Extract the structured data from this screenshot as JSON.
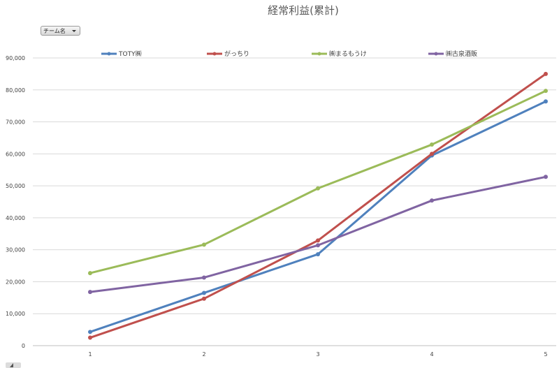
{
  "chart_data": {
    "type": "line",
    "title": "経常利益(累計)",
    "categories": [
      "1",
      "2",
      "3",
      "4",
      "5"
    ],
    "ylim": [
      0,
      90000
    ],
    "ytick_labels": [
      "0",
      "10,000",
      "20,000",
      "30,000",
      "40,000",
      "50,000",
      "60,000",
      "70,000",
      "80,000",
      "90,000"
    ],
    "yticks": [
      0,
      10000,
      20000,
      30000,
      40000,
      50000,
      60000,
      70000,
      80000,
      90000
    ],
    "grid": true,
    "legend_position": "top",
    "series": [
      {
        "name": "TOTY㈱",
        "color": "#4f81bd",
        "values": [
          4300,
          16500,
          28600,
          59500,
          76400
        ]
      },
      {
        "name": "がっちり",
        "color": "#c0504d",
        "values": [
          2500,
          14700,
          32900,
          60000,
          85000
        ]
      },
      {
        "name": "㈱まるもうけ",
        "color": "#9bbb59",
        "values": [
          22700,
          31600,
          49200,
          62900,
          79700
        ]
      },
      {
        "name": "㈱古泉酒販",
        "color": "#8064a2",
        "values": [
          16800,
          21300,
          31400,
          45400,
          52800
        ]
      }
    ]
  },
  "filter_button": {
    "label": "チーム名"
  }
}
